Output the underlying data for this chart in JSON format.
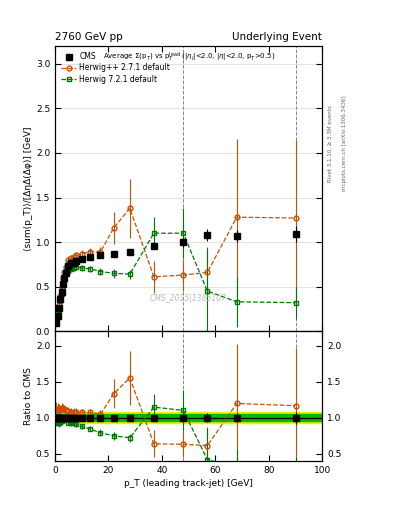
{
  "title_left": "2760 GeV pp",
  "title_right": "Underlying Event",
  "watermark": "CMS_2015|1385107",
  "xlabel": "p_T (leading track-jet) [GeV]",
  "ylabel_main": "⟨sum(p_T)⟩/[ΔηΔ(Δφ)] [GeV]",
  "ylabel_ratio": "Ratio to CMS",
  "xlim": [
    0,
    100
  ],
  "ylim_main": [
    0,
    3.2
  ],
  "ylim_ratio": [
    0.4,
    2.2
  ],
  "cms_x": [
    0.5,
    1.0,
    1.5,
    2.0,
    2.5,
    3.0,
    3.5,
    4.0,
    5.0,
    6.0,
    7.0,
    8.0,
    10.0,
    13.0,
    17.0,
    22.0,
    28.0,
    37.0,
    48.0,
    57.0,
    68.0,
    90.0
  ],
  "cms_y": [
    0.09,
    0.17,
    0.26,
    0.36,
    0.44,
    0.53,
    0.6,
    0.65,
    0.73,
    0.76,
    0.77,
    0.79,
    0.81,
    0.83,
    0.85,
    0.87,
    0.89,
    0.96,
    1.0,
    1.08,
    1.07,
    1.09
  ],
  "cms_yerr": [
    0.005,
    0.008,
    0.012,
    0.016,
    0.018,
    0.02,
    0.022,
    0.023,
    0.025,
    0.026,
    0.027,
    0.028,
    0.029,
    0.03,
    0.032,
    0.033,
    0.035,
    0.04,
    0.05,
    0.07,
    0.07,
    0.09
  ],
  "hpp_x": [
    0.5,
    1.0,
    1.5,
    2.0,
    2.5,
    3.0,
    3.5,
    4.0,
    5.0,
    6.0,
    7.0,
    8.0,
    10.0,
    13.0,
    17.0,
    22.0,
    28.0,
    37.0,
    48.0,
    57.0,
    68.0,
    90.0
  ],
  "hpp_y": [
    0.1,
    0.19,
    0.29,
    0.4,
    0.5,
    0.6,
    0.67,
    0.72,
    0.8,
    0.82,
    0.83,
    0.85,
    0.87,
    0.89,
    0.89,
    1.16,
    1.38,
    0.61,
    0.63,
    0.66,
    1.28,
    1.27
  ],
  "hpp_yerr_lo": [
    0.01,
    0.015,
    0.02,
    0.025,
    0.03,
    0.03,
    0.03,
    0.03,
    0.04,
    0.04,
    0.04,
    0.04,
    0.04,
    0.04,
    0.05,
    0.18,
    0.33,
    0.18,
    0.18,
    0.28,
    0.88,
    0.88
  ],
  "hpp_yerr_hi": [
    0.01,
    0.015,
    0.02,
    0.025,
    0.03,
    0.03,
    0.03,
    0.03,
    0.04,
    0.04,
    0.04,
    0.04,
    0.04,
    0.04,
    0.05,
    0.18,
    0.33,
    0.18,
    0.18,
    0.28,
    0.88,
    0.88
  ],
  "h721_x": [
    0.5,
    1.0,
    1.5,
    2.0,
    2.5,
    3.0,
    3.5,
    4.0,
    5.0,
    6.0,
    7.0,
    8.0,
    10.0,
    13.0,
    17.0,
    22.0,
    28.0,
    37.0,
    48.0,
    57.0,
    68.0,
    90.0
  ],
  "h721_y": [
    0.09,
    0.16,
    0.24,
    0.34,
    0.42,
    0.52,
    0.59,
    0.65,
    0.68,
    0.7,
    0.71,
    0.72,
    0.71,
    0.7,
    0.67,
    0.65,
    0.64,
    1.1,
    1.1,
    0.45,
    0.33,
    0.32
  ],
  "h721_yerr_lo": [
    0.01,
    0.01,
    0.015,
    0.02,
    0.025,
    0.025,
    0.025,
    0.025,
    0.03,
    0.03,
    0.03,
    0.03,
    0.03,
    0.03,
    0.04,
    0.05,
    0.05,
    0.18,
    0.28,
    0.48,
    0.28,
    0.18
  ],
  "h721_yerr_hi": [
    0.01,
    0.01,
    0.015,
    0.02,
    0.025,
    0.025,
    0.025,
    0.025,
    0.03,
    0.03,
    0.03,
    0.03,
    0.03,
    0.03,
    0.04,
    0.05,
    0.05,
    0.18,
    0.28,
    0.48,
    0.28,
    0.18
  ],
  "cms_color": "#000000",
  "hpp_color": "#c85000",
  "h721_color": "#007700",
  "band_yellow": "#eeee00",
  "band_green": "#00bb00",
  "yticks_main": [
    0.0,
    0.5,
    1.0,
    1.5,
    2.0,
    2.5,
    3.0
  ],
  "yticks_ratio": [
    0.5,
    1.0,
    1.5,
    2.0
  ],
  "vlines": [
    48,
    90
  ]
}
